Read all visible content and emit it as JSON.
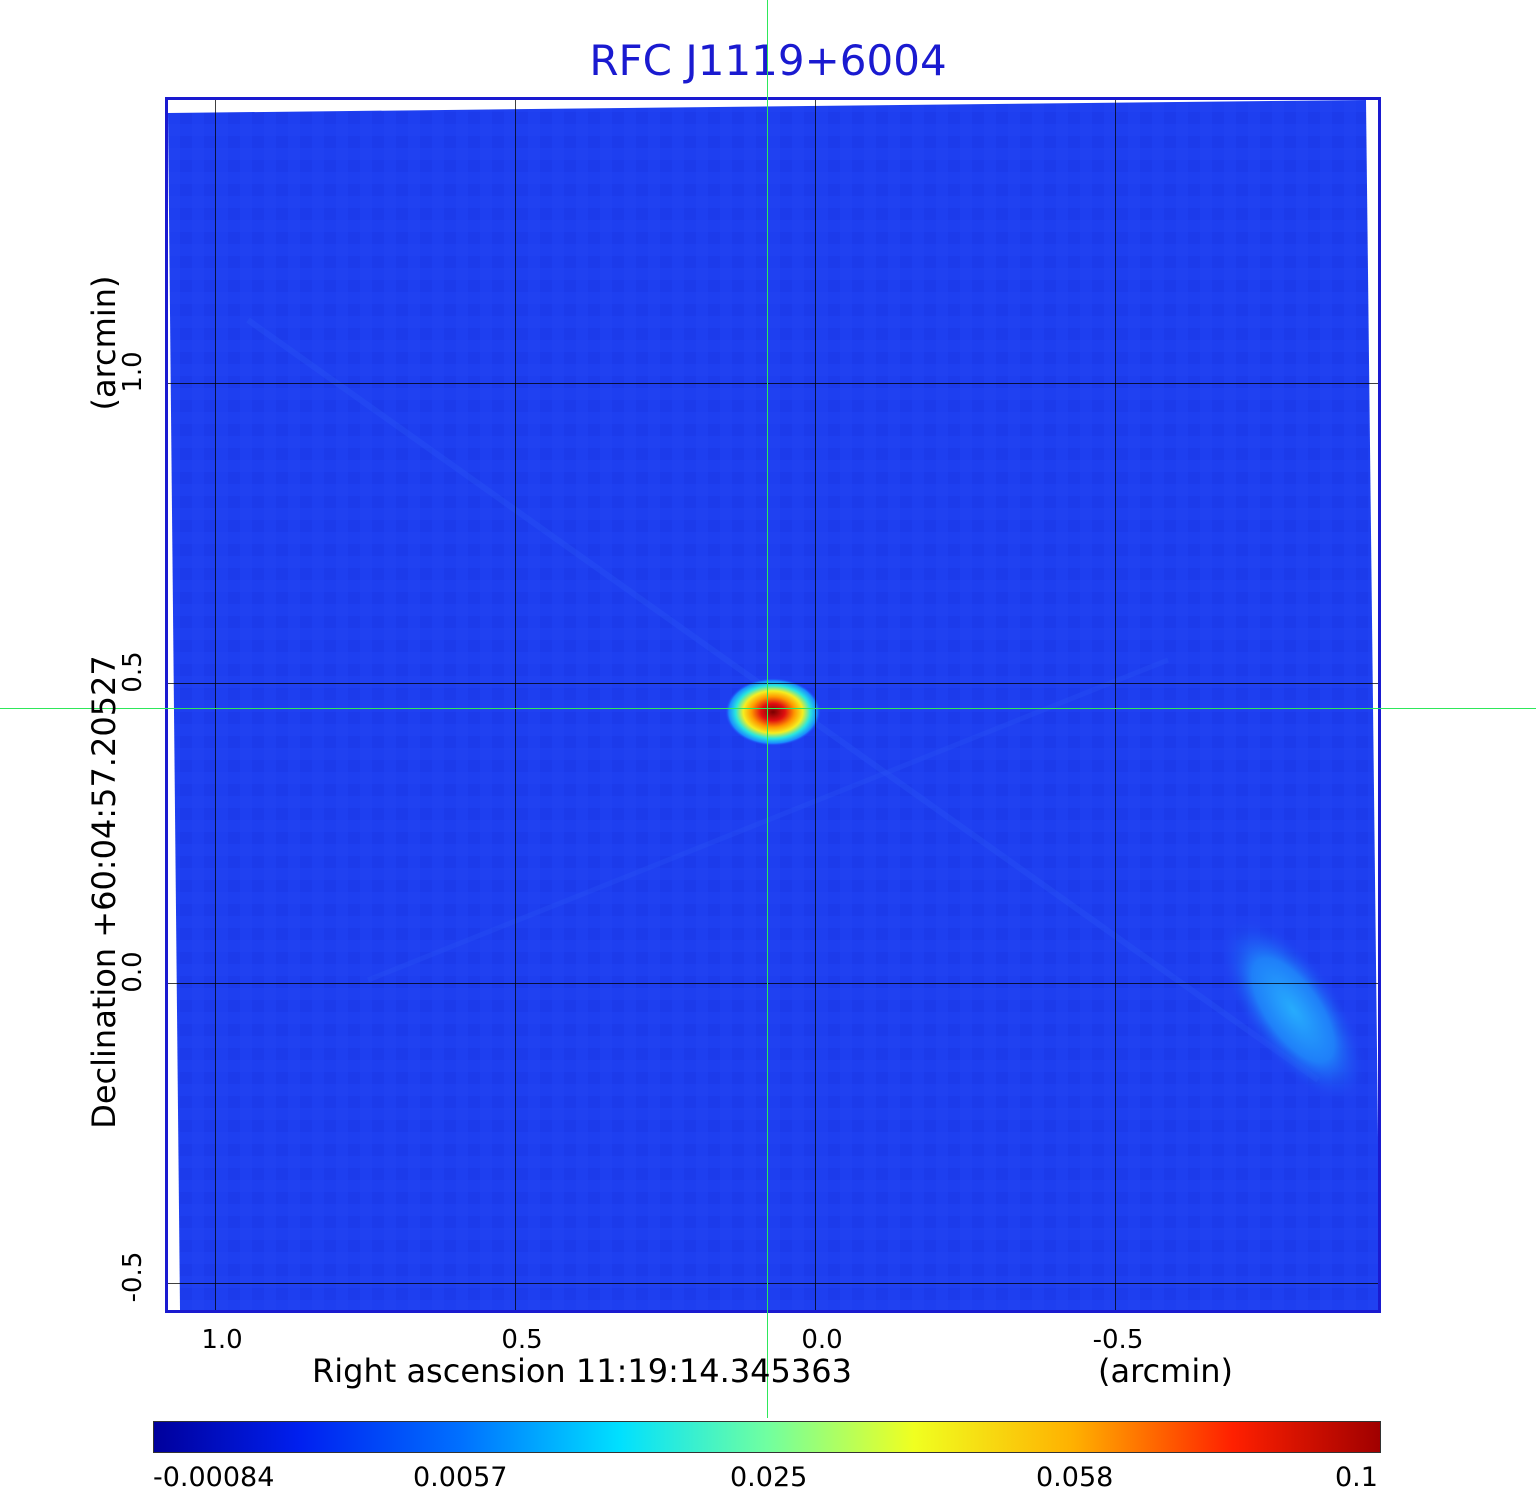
{
  "title": "RFC J1119+6004",
  "x_axis": {
    "label": "Right ascension  11:19:14.345363",
    "unit": "(arcmin)",
    "ticks": [
      "1.0",
      "0.5",
      "0.0",
      "-0.5"
    ]
  },
  "y_axis": {
    "label": "Declination  +60:04:57.20527",
    "unit": "(arcmin)",
    "ticks": [
      "1.0",
      "0.5",
      "0.0",
      "-0.5"
    ]
  },
  "colorbar": {
    "colormap": "jet",
    "labels": [
      "-0.00084",
      "0.0057",
      "0.025",
      "0.058",
      "0.1"
    ]
  },
  "colors": {
    "frame": "#1a1ad0",
    "title": "#1a1ad0",
    "crosshair": "#2ee85a",
    "background_field": "#1f3cf0"
  },
  "image": {
    "source_peak": "red compact source at center",
    "secondary_feature": "faint extended cyan emission lower right"
  }
}
